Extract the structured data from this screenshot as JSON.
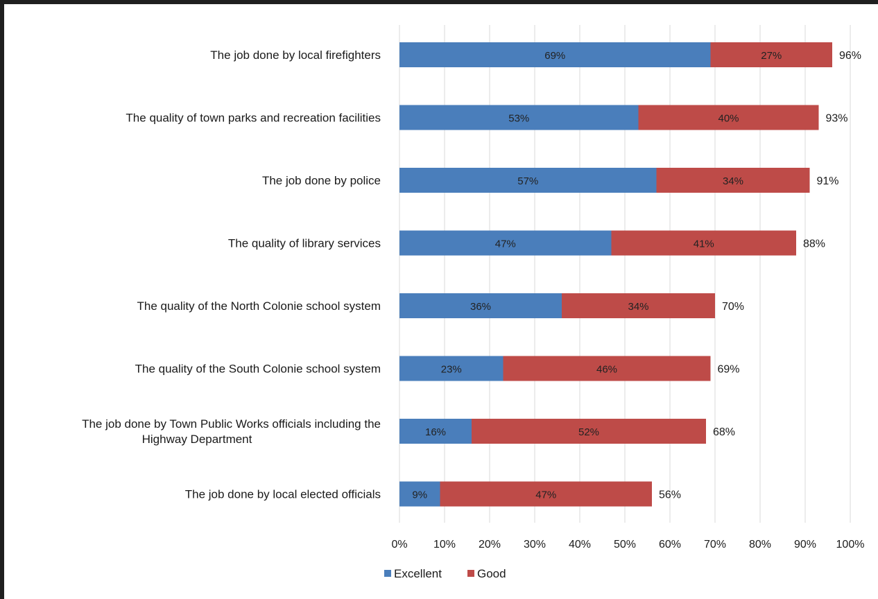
{
  "chart_data": {
    "type": "bar",
    "orientation": "horizontal",
    "stacked": true,
    "categories": [
      [
        "The job done by local firefighters"
      ],
      [
        "The quality of town parks and recreation facilities"
      ],
      [
        "The job done by police"
      ],
      [
        "The quality of library services"
      ],
      [
        "The quality of the North Colonie school system"
      ],
      [
        "The quality of the South Colonie school system"
      ],
      [
        "The job done by Town Public Works officials including the",
        "Highway Department"
      ],
      [
        "The job done by local elected officials"
      ]
    ],
    "series": [
      {
        "name": "Excellent",
        "color": "#4a7ebb",
        "values": [
          69,
          53,
          57,
          47,
          36,
          23,
          16,
          9
        ],
        "labels": [
          "69%",
          "53%",
          "57%",
          "47%",
          "36%",
          "23%",
          "16%",
          "9%"
        ]
      },
      {
        "name": "Good",
        "color": "#be4b48",
        "values": [
          27,
          40,
          34,
          41,
          34,
          46,
          52,
          47
        ],
        "labels": [
          "27%",
          "40%",
          "34%",
          "41%",
          "34%",
          "46%",
          "52%",
          "47%"
        ]
      }
    ],
    "totals": [
      "96%",
      "93%",
      "91%",
      "88%",
      "70%",
      "69%",
      "68%",
      "56%"
    ],
    "xlim": [
      0,
      100
    ],
    "x_ticks": [
      "0%",
      "10%",
      "20%",
      "30%",
      "40%",
      "50%",
      "60%",
      "70%",
      "80%",
      "90%",
      "100%"
    ],
    "grid": "vertical",
    "legend": "bottom"
  }
}
